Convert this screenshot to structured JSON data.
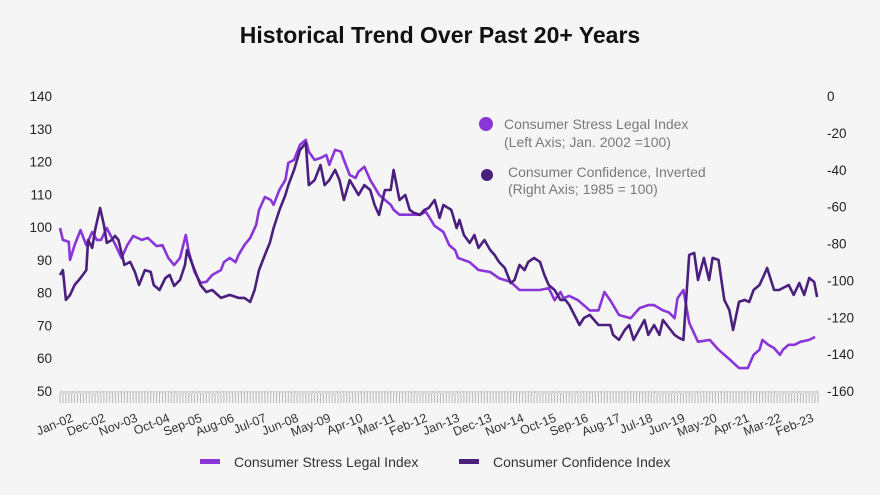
{
  "chart_data": {
    "type": "line",
    "title": "Historical Trend Over Past 20+ Years",
    "xlabel": "",
    "ylabel_left": "",
    "ylabel_right": "",
    "x_start": "Jan-02",
    "x_tick_labels": [
      "Jan-02",
      "Dec-02",
      "Nov-03",
      "Oct-04",
      "Sep-05",
      "Aug-06",
      "Jul-07",
      "Jun-08",
      "May-09",
      "Apr-10",
      "Mar-11",
      "Feb-12",
      "Jan-13",
      "Dec-13",
      "Nov-14",
      "Oct-15",
      "Sep-16",
      "Aug-17",
      "Jul-18",
      "Jun-19",
      "May-20",
      "Apr-21",
      "Mar-22",
      "Feb-23"
    ],
    "x_tick_interval_months": 11,
    "x_month_count": 259,
    "y_left": {
      "min": 50,
      "max": 140,
      "ticks": [
        50,
        60,
        70,
        80,
        90,
        100,
        110,
        120,
        130,
        140
      ]
    },
    "y_right": {
      "min": -160,
      "max": 0,
      "ticks": [
        -160,
        -140,
        -120,
        -100,
        -80,
        -60,
        -40,
        -20,
        0
      ]
    },
    "grid": false,
    "legend_top": [
      {
        "line1": "Consumer Stress Legal Index",
        "line2": "(Left Axis; Jan. 2002 =100)",
        "color": "#8a35d8"
      },
      {
        "line1": "Consumer Confidence, Inverted",
        "line2": "(Right Axis; 1985 = 100)",
        "color": "#4a1f7d"
      }
    ],
    "legend_bottom": [
      {
        "label": "Consumer Stress Legal Index",
        "color": "#8a35d8"
      },
      {
        "label": "Consumer Confidence Index",
        "color": "#4a1f7d"
      }
    ],
    "series": [
      {
        "name": "Consumer Stress Legal Index",
        "axis": "left",
        "color": "#8a35d8",
        "points_month_value": [
          [
            0,
            99.7
          ],
          [
            1,
            96.1
          ],
          [
            3,
            95.5
          ],
          [
            3.4,
            90.0
          ],
          [
            5,
            94.5
          ],
          [
            7,
            99.1
          ],
          [
            9,
            94.5
          ],
          [
            11,
            98.5
          ],
          [
            12.6,
            96.1
          ],
          [
            14,
            96.1
          ],
          [
            16,
            99.7
          ],
          [
            19,
            94.5
          ],
          [
            21,
            90.6
          ],
          [
            23,
            94.5
          ],
          [
            25,
            97.3
          ],
          [
            28,
            96.1
          ],
          [
            30,
            96.7
          ],
          [
            33,
            94.2
          ],
          [
            35,
            94.5
          ],
          [
            37,
            90.6
          ],
          [
            39,
            88.4
          ],
          [
            41,
            90.6
          ],
          [
            43,
            97.6
          ],
          [
            44,
            92.4
          ],
          [
            46,
            86.3
          ],
          [
            48,
            83.0
          ],
          [
            50,
            83.3
          ],
          [
            52,
            85.4
          ],
          [
            55,
            86.9
          ],
          [
            56,
            89.3
          ],
          [
            58,
            90.6
          ],
          [
            60,
            89.3
          ],
          [
            61,
            91.5
          ],
          [
            63,
            94.5
          ],
          [
            65,
            96.7
          ],
          [
            67,
            100.6
          ],
          [
            68,
            105.2
          ],
          [
            70,
            109.2
          ],
          [
            72,
            108.3
          ],
          [
            73,
            106.8
          ],
          [
            75,
            111.4
          ],
          [
            77,
            114.4
          ],
          [
            78,
            119.6
          ],
          [
            80,
            120.5
          ],
          [
            82,
            125.1
          ],
          [
            84,
            126.6
          ],
          [
            85,
            123.0
          ],
          [
            87,
            120.5
          ],
          [
            89,
            121.1
          ],
          [
            91,
            122.0
          ],
          [
            92,
            119.0
          ],
          [
            94,
            123.6
          ],
          [
            96,
            123.0
          ],
          [
            97,
            120.5
          ],
          [
            99,
            115.9
          ],
          [
            101,
            115.0
          ],
          [
            102,
            116.9
          ],
          [
            104,
            118.4
          ],
          [
            106,
            114.4
          ],
          [
            108,
            111.4
          ],
          [
            109,
            109.9
          ],
          [
            111,
            108.3
          ],
          [
            113,
            106.8
          ],
          [
            114,
            105.3
          ],
          [
            116,
            103.8
          ],
          [
            119,
            103.8
          ],
          [
            123,
            103.8
          ],
          [
            125,
            104.7
          ],
          [
            128,
            100.4
          ],
          [
            131,
            98.5
          ],
          [
            133,
            94.5
          ],
          [
            135,
            93.0
          ],
          [
            136,
            90.6
          ],
          [
            140,
            89.3
          ],
          [
            143,
            86.9
          ],
          [
            147,
            86.3
          ],
          [
            150,
            84.4
          ],
          [
            154,
            83.3
          ],
          [
            157,
            80.8
          ],
          [
            160,
            80.8
          ],
          [
            164,
            80.8
          ],
          [
            167,
            81.4
          ],
          [
            169,
            77.7
          ],
          [
            171,
            80.2
          ],
          [
            172,
            78.3
          ],
          [
            174,
            79.0
          ],
          [
            177,
            77.7
          ],
          [
            181,
            74.6
          ],
          [
            184,
            74.6
          ],
          [
            186,
            80.2
          ],
          [
            188,
            77.7
          ],
          [
            191,
            73.2
          ],
          [
            195,
            72.2
          ],
          [
            198,
            75.3
          ],
          [
            201,
            76.2
          ],
          [
            203,
            76.2
          ],
          [
            206,
            74.6
          ],
          [
            208,
            74.0
          ],
          [
            210,
            72.2
          ],
          [
            211,
            78.3
          ],
          [
            213,
            80.8
          ],
          [
            215,
            70.8
          ],
          [
            218,
            65.0
          ],
          [
            222,
            65.6
          ],
          [
            225,
            62.6
          ],
          [
            229,
            59.5
          ],
          [
            232,
            57.0
          ],
          [
            235,
            57.0
          ],
          [
            237,
            61.0
          ],
          [
            239,
            62.6
          ],
          [
            240,
            65.6
          ],
          [
            242,
            64.1
          ],
          [
            244,
            63.1
          ],
          [
            246,
            61.0
          ],
          [
            247,
            62.6
          ],
          [
            249,
            64.1
          ],
          [
            251,
            64.1
          ],
          [
            253,
            65.0
          ],
          [
            256,
            65.6
          ],
          [
            258,
            66.5
          ]
        ]
      },
      {
        "name": "Consumer Confidence Index (Inverted)",
        "axis": "right",
        "color": "#4a1f7d",
        "points_month_value": [
          [
            0,
            -97.1
          ],
          [
            1,
            -94.4
          ],
          [
            2,
            -110.6
          ],
          [
            3.4,
            -108.0
          ],
          [
            5,
            -102.5
          ],
          [
            7,
            -98.7
          ],
          [
            9,
            -94.4
          ],
          [
            9.6,
            -78.1
          ],
          [
            11,
            -82.4
          ],
          [
            12,
            -72.6
          ],
          [
            13.7,
            -60.7
          ],
          [
            15,
            -69.9
          ],
          [
            16,
            -79.7
          ],
          [
            17.7,
            -78.1
          ],
          [
            18.8,
            -75.9
          ],
          [
            20,
            -78.1
          ],
          [
            22,
            -91.6
          ],
          [
            24,
            -90.0
          ],
          [
            25.6,
            -95.4
          ],
          [
            27,
            -102.5
          ],
          [
            29,
            -94.4
          ],
          [
            31,
            -95.4
          ],
          [
            32,
            -102.5
          ],
          [
            34,
            -105.2
          ],
          [
            36,
            -98.7
          ],
          [
            37.5,
            -97.1
          ],
          [
            39,
            -103.0
          ],
          [
            41,
            -99.8
          ],
          [
            42.7,
            -91.6
          ],
          [
            43.4,
            -83.5
          ],
          [
            44.4,
            -87.8
          ],
          [
            46,
            -94.4
          ],
          [
            48,
            -102.5
          ],
          [
            50,
            -106.3
          ],
          [
            52,
            -105.2
          ],
          [
            55,
            -109.5
          ],
          [
            58,
            -107.9
          ],
          [
            61,
            -109.5
          ],
          [
            63,
            -109.5
          ],
          [
            65,
            -111.7
          ],
          [
            66.5,
            -105.2
          ],
          [
            68,
            -94.4
          ],
          [
            70,
            -86.2
          ],
          [
            71.7,
            -79.7
          ],
          [
            73,
            -71.6
          ],
          [
            75,
            -61.8
          ],
          [
            77,
            -53.7
          ],
          [
            78,
            -48.3
          ],
          [
            80,
            -40.1
          ],
          [
            82,
            -29.3
          ],
          [
            84,
            -25.5
          ],
          [
            85,
            -48.3
          ],
          [
            87,
            -45.6
          ],
          [
            89,
            -37.4
          ],
          [
            90.4,
            -48.3
          ],
          [
            92,
            -45.6
          ],
          [
            94,
            -40.1
          ],
          [
            95.5,
            -45.6
          ],
          [
            97,
            -56.4
          ],
          [
            99,
            -45.6
          ],
          [
            101,
            -51.0
          ],
          [
            102,
            -53.7
          ],
          [
            104,
            -48.3
          ],
          [
            106,
            -51.0
          ],
          [
            107.5,
            -59.1
          ],
          [
            109,
            -64.5
          ],
          [
            111,
            -51.0
          ],
          [
            113,
            -51.0
          ],
          [
            114,
            -40.1
          ],
          [
            116,
            -56.4
          ],
          [
            118,
            -53.7
          ],
          [
            119.5,
            -61.8
          ],
          [
            121,
            -63.4
          ],
          [
            123,
            -64.5
          ],
          [
            124.5,
            -61.8
          ],
          [
            126,
            -60.7
          ],
          [
            128,
            -56.4
          ],
          [
            129.7,
            -66.1
          ],
          [
            131,
            -59.1
          ],
          [
            133.7,
            -61.8
          ],
          [
            135.5,
            -71.6
          ],
          [
            136.5,
            -67.2
          ],
          [
            138,
            -75.4
          ],
          [
            140,
            -79.7
          ],
          [
            141.6,
            -75.4
          ],
          [
            143,
            -82.4
          ],
          [
            145,
            -78.1
          ],
          [
            147,
            -83.5
          ],
          [
            148.5,
            -86.2
          ],
          [
            150,
            -90.0
          ],
          [
            152,
            -93.3
          ],
          [
            154,
            -101.4
          ],
          [
            155.3,
            -99.8
          ],
          [
            157,
            -91.6
          ],
          [
            158.7,
            -94.4
          ],
          [
            160,
            -90.0
          ],
          [
            162,
            -87.8
          ],
          [
            164,
            -90.0
          ],
          [
            165.5,
            -97.1
          ],
          [
            167,
            -102.5
          ],
          [
            169,
            -105.2
          ],
          [
            171,
            -110.6
          ],
          [
            172.7,
            -110.6
          ],
          [
            174,
            -113.3
          ],
          [
            177.5,
            -124.2
          ],
          [
            179,
            -120.4
          ],
          [
            181,
            -118.7
          ],
          [
            184,
            -124.2
          ],
          [
            188,
            -124.2
          ],
          [
            189,
            -129.6
          ],
          [
            191,
            -132.3
          ],
          [
            193,
            -126.9
          ],
          [
            194.5,
            -124.2
          ],
          [
            196,
            -132.3
          ],
          [
            199.7,
            -121.5
          ],
          [
            201,
            -129.6
          ],
          [
            203,
            -124.2
          ],
          [
            204.8,
            -129.6
          ],
          [
            206,
            -121.5
          ],
          [
            210,
            -129.6
          ],
          [
            211.6,
            -131.3
          ],
          [
            213,
            -132.3
          ],
          [
            215,
            -86.2
          ],
          [
            216.7,
            -85.1
          ],
          [
            218,
            -99.8
          ],
          [
            220,
            -87.8
          ],
          [
            221.8,
            -99.8
          ],
          [
            223,
            -87.8
          ],
          [
            225,
            -88.9
          ],
          [
            227,
            -110.6
          ],
          [
            228.7,
            -116.0
          ],
          [
            230,
            -126.9
          ],
          [
            232,
            -111.7
          ],
          [
            234,
            -110.6
          ],
          [
            235.5,
            -111.7
          ],
          [
            237,
            -105.2
          ],
          [
            239,
            -102.5
          ],
          [
            240.6,
            -97.1
          ],
          [
            241.6,
            -93.3
          ],
          [
            244,
            -105.2
          ],
          [
            245.7,
            -105.2
          ],
          [
            249,
            -102.5
          ],
          [
            250.7,
            -107.9
          ],
          [
            252.6,
            -101.4
          ],
          [
            254.3,
            -107.9
          ],
          [
            256,
            -98.7
          ],
          [
            257.7,
            -100.9
          ],
          [
            258.7,
            -109.0
          ]
        ]
      }
    ]
  }
}
